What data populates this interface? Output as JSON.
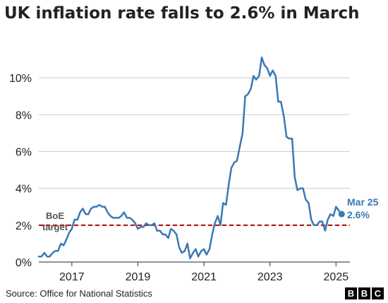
{
  "title": "UK inflation rate falls to 2.6% in March",
  "source": "Source: Office for National Statistics",
  "logo_letters": [
    "B",
    "B",
    "C"
  ],
  "colors": {
    "line": "#3a78b5",
    "target": "#b80000",
    "text": "#222222",
    "axis": "#505050",
    "grid": "#cccccc"
  },
  "chart_data": {
    "type": "line",
    "xlim": [
      2016.0,
      2025.42
    ],
    "ylim": [
      0,
      11
    ],
    "xticks": [
      2017,
      2019,
      2021,
      2023,
      2025
    ],
    "yticks": [
      0,
      2,
      4,
      6,
      8,
      10
    ],
    "ytick_labels": [
      "0%",
      "2%",
      "4%",
      "6%",
      "8%",
      "10%"
    ],
    "grid": true,
    "series": [
      {
        "x": [
          2016.0,
          2016.08,
          2016.17,
          2016.25,
          2016.33,
          2016.42,
          2016.5,
          2016.58,
          2016.67,
          2016.75,
          2016.83,
          2016.92,
          2017.0,
          2017.08,
          2017.17,
          2017.25,
          2017.33,
          2017.42,
          2017.5,
          2017.58,
          2017.67,
          2017.75,
          2017.83,
          2017.92,
          2018.0,
          2018.08,
          2018.17,
          2018.25,
          2018.33,
          2018.42,
          2018.5,
          2018.58,
          2018.67,
          2018.75,
          2018.83,
          2018.92,
          2019.0,
          2019.08,
          2019.17,
          2019.25,
          2019.33,
          2019.42,
          2019.5,
          2019.58,
          2019.67,
          2019.75,
          2019.83,
          2019.92,
          2020.0,
          2020.08,
          2020.17,
          2020.25,
          2020.33,
          2020.42,
          2020.5,
          2020.58,
          2020.67,
          2020.75,
          2020.83,
          2020.92,
          2021.0,
          2021.08,
          2021.17,
          2021.25,
          2021.33,
          2021.42,
          2021.5,
          2021.58,
          2021.67,
          2021.75,
          2021.83,
          2021.92,
          2022.0,
          2022.08,
          2022.17,
          2022.25,
          2022.33,
          2022.42,
          2022.5,
          2022.58,
          2022.67,
          2022.75,
          2022.83,
          2022.92,
          2023.0,
          2023.08,
          2023.17,
          2023.25,
          2023.33,
          2023.42,
          2023.5,
          2023.58,
          2023.67,
          2023.75,
          2023.83,
          2023.92,
          2024.0,
          2024.08,
          2024.17,
          2024.25,
          2024.33,
          2024.42,
          2024.5,
          2024.58,
          2024.67,
          2024.75,
          2024.83,
          2024.92,
          2025.0,
          2025.08,
          2025.17
        ],
        "values": [
          0.3,
          0.3,
          0.5,
          0.3,
          0.3,
          0.5,
          0.6,
          0.6,
          1.0,
          0.9,
          1.2,
          1.6,
          1.8,
          2.3,
          2.3,
          2.7,
          2.9,
          2.6,
          2.6,
          2.9,
          3.0,
          3.0,
          3.1,
          3.0,
          3.0,
          2.7,
          2.5,
          2.4,
          2.4,
          2.4,
          2.5,
          2.7,
          2.4,
          2.4,
          2.3,
          2.1,
          1.8,
          1.9,
          1.9,
          2.1,
          2.0,
          2.0,
          2.1,
          1.7,
          1.7,
          1.5,
          1.5,
          1.3,
          1.8,
          1.7,
          1.5,
          0.8,
          0.5,
          0.6,
          1.0,
          0.2,
          0.5,
          0.7,
          0.3,
          0.6,
          0.7,
          0.4,
          0.7,
          1.5,
          2.1,
          2.5,
          2.0,
          3.2,
          3.1,
          4.2,
          5.1,
          5.4,
          5.5,
          6.2,
          7.0,
          9.0,
          9.1,
          9.4,
          10.1,
          9.9,
          10.1,
          11.1,
          10.7,
          10.5,
          10.1,
          10.4,
          10.1,
          8.7,
          8.7,
          7.9,
          6.8,
          6.7,
          6.7,
          4.6,
          3.9,
          4.0,
          4.0,
          3.4,
          3.2,
          2.3,
          2.0,
          2.0,
          2.2,
          2.2,
          1.7,
          2.3,
          2.6,
          2.5,
          3.0,
          2.8,
          2.6
        ]
      }
    ],
    "annotations": {
      "target_value": 2,
      "target_label_line1": "BoE",
      "target_label_line2": "target",
      "end_label_line1": "Mar 25",
      "end_label_line2": "2.6%"
    }
  }
}
